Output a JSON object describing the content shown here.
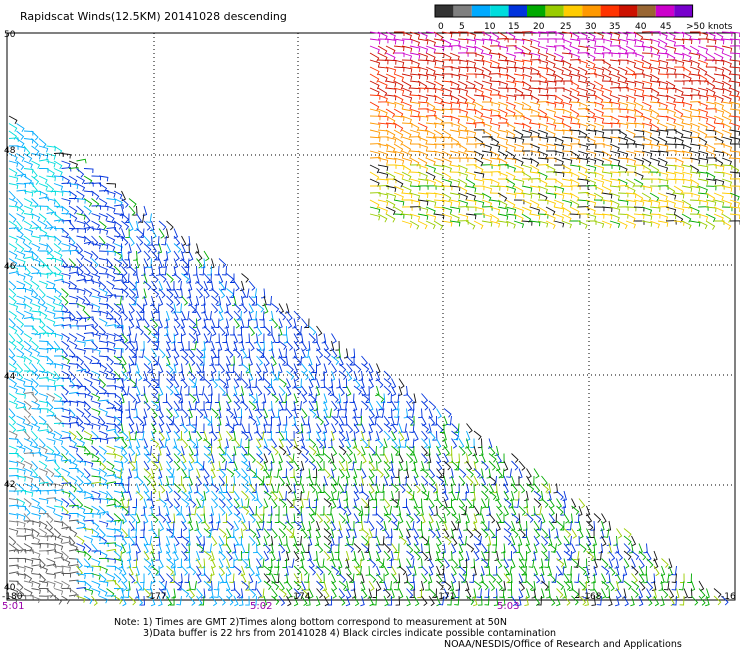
{
  "title": "Rapidscat Winds(12.5KM) 20141028 descending",
  "legend": {
    "colors": [
      "#333333",
      "#7f7f7f",
      "#00aaff",
      "#00dddd",
      "#0033dd",
      "#00aa00",
      "#99cc00",
      "#ffcc00",
      "#ff9900",
      "#ff3300",
      "#cc1100",
      "#996633",
      "#cc00cc",
      "#7700cc"
    ],
    "labels": [
      "0",
      "5",
      "10",
      "15",
      "20",
      "25",
      "30",
      "35",
      "40",
      "45",
      ">50 knots"
    ]
  },
  "axes": {
    "lat_labels": [
      "50",
      "48",
      "46",
      "44",
      "42",
      "40"
    ],
    "lon_labels": [
      "-180",
      "-177",
      "-174",
      "-171",
      "-168",
      "-16"
    ],
    "time_labels": [
      "5:01",
      "5:02",
      "5:03"
    ]
  },
  "notes": {
    "line1": "Note: 1) Times are GMT 2)Times along bottom correspond to measurement at 50N",
    "line2": "3)Data buffer is 22 hrs from 20141028 4) Black circles indicate possible contamination",
    "line3": "NOAA/NESDIS/Office of Research and Applications"
  }
}
